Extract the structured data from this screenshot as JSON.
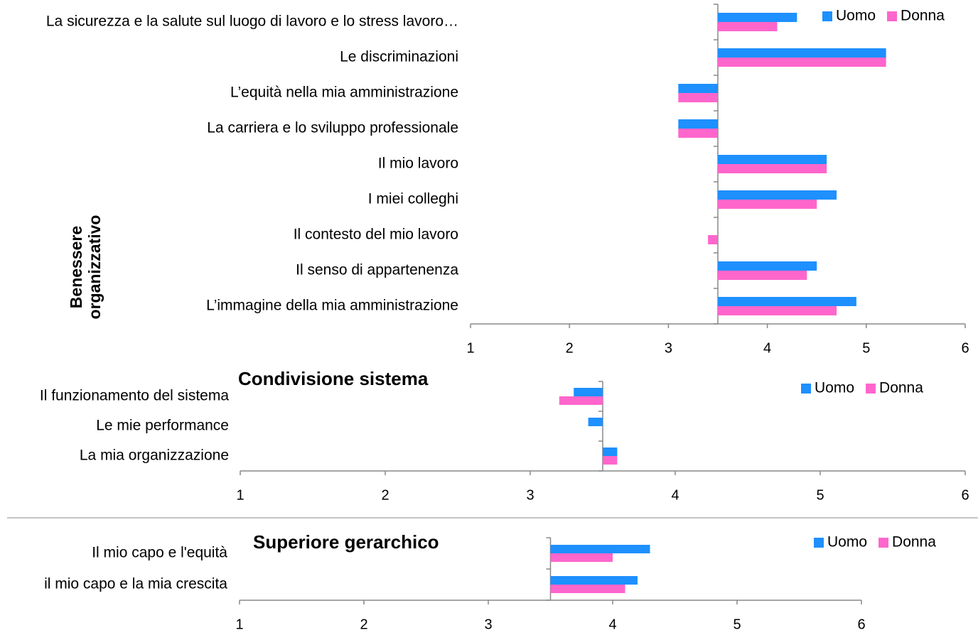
{
  "chart_data": [
    {
      "type": "hbar",
      "title": "Benessere organizzativo",
      "categories": [
        "La sicurezza e la salute sul luogo di lavoro e lo stress lavoro…",
        "Le discriminazioni",
        "L’equità nella mia amministrazione",
        "La carriera e lo sviluppo professionale",
        "Il mio lavoro",
        "I miei colleghi",
        "Il contesto del mio lavoro",
        "Il senso di appartenenza",
        "L’immagine della mia amministrazione"
      ],
      "series": [
        {
          "name": "Uomo",
          "color": "#1e90ff",
          "values": [
            4.3,
            5.2,
            3.1,
            3.1,
            4.6,
            4.7,
            3.5,
            4.5,
            4.9
          ]
        },
        {
          "name": "Donna",
          "color": "#ff66cc",
          "values": [
            4.1,
            5.2,
            3.1,
            3.1,
            4.6,
            4.5,
            3.4,
            4.4,
            4.7
          ]
        }
      ],
      "xlim": [
        1,
        6
      ],
      "xticks": [
        1,
        2,
        3,
        4,
        5,
        6
      ],
      "x_axis_crosses": 3.5
    },
    {
      "type": "hbar",
      "title": "Condivisione sistema",
      "categories": [
        "Il funzionamento del sistema",
        "Le mie performance",
        "La mia organizzazione"
      ],
      "series": [
        {
          "name": "Uomo",
          "color": "#1e90ff",
          "values": [
            3.3,
            3.4,
            3.6
          ]
        },
        {
          "name": "Donna",
          "color": "#ff66cc",
          "values": [
            3.2,
            3.5,
            3.6
          ]
        }
      ],
      "xlim": [
        1,
        6
      ],
      "xticks": [
        1,
        2,
        3,
        4,
        5,
        6
      ],
      "x_axis_crosses": 3.5
    },
    {
      "type": "hbar",
      "title": "Superiore gerarchico",
      "categories": [
        "Il mio capo e l'equità",
        "il mio capo e la mia crescita"
      ],
      "series": [
        {
          "name": "Uomo",
          "color": "#1e90ff",
          "values": [
            4.3,
            4.2
          ]
        },
        {
          "name": "Donna",
          "color": "#ff66cc",
          "values": [
            4.0,
            4.1
          ]
        }
      ],
      "xlim": [
        1,
        6
      ],
      "xticks": [
        1,
        2,
        3,
        4,
        5,
        6
      ],
      "x_axis_crosses": 3.5
    }
  ]
}
